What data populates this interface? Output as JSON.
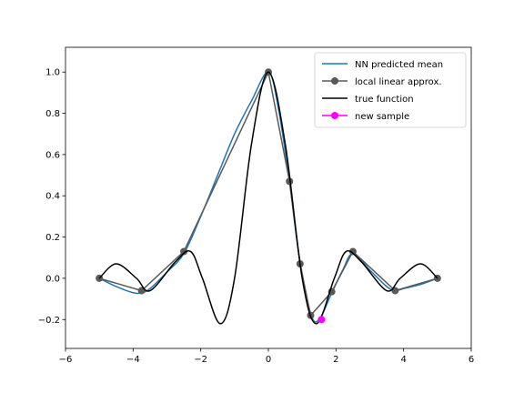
{
  "chart_data": {
    "type": "line",
    "title": "",
    "xlabel": "",
    "ylabel": "",
    "xlim": [
      -6,
      6
    ],
    "ylim": [
      -0.34,
      1.12
    ],
    "xticks": [
      -6,
      -4,
      -2,
      0,
      2,
      4,
      6
    ],
    "yticks": [
      -0.2,
      0.0,
      0.2,
      0.4,
      0.6,
      0.8,
      1.0
    ],
    "xtick_labels": [
      "−6",
      "−4",
      "−2",
      "0",
      "2",
      "4",
      "6"
    ],
    "ytick_labels": [
      "−0.2",
      "0.0",
      "0.2",
      "0.4",
      "0.6",
      "0.8",
      "1.0"
    ],
    "grid": false,
    "legend_position": "top-right",
    "series": [
      {
        "name": "NN predicted mean",
        "color": "#1f77b4",
        "style": "line",
        "x": [
          -5.0,
          -4.5,
          -4.0,
          -3.75,
          -3.5,
          -3.0,
          -2.5,
          -2.0,
          -1.5,
          -1.0,
          -0.5,
          0.0,
          0.3,
          0.625,
          0.9,
          1.25,
          1.5,
          1.875,
          2.2,
          2.5,
          3.0,
          3.5,
          3.75,
          4.0,
          4.5,
          5.0
        ],
        "y": [
          0.0,
          -0.04,
          -0.07,
          -0.07,
          -0.05,
          0.03,
          0.12,
          0.3,
          0.5,
          0.7,
          0.86,
          1.0,
          0.82,
          0.47,
          0.12,
          -0.17,
          -0.2,
          -0.07,
          0.04,
          0.12,
          0.04,
          -0.04,
          -0.06,
          -0.05,
          -0.03,
          0.0
        ]
      },
      {
        "name": "local linear approx.",
        "color": "#595959",
        "style": "line-marker",
        "x": [
          -5.0,
          -3.75,
          -2.5,
          0.0,
          0.625,
          0.9375,
          1.25,
          1.875,
          2.5,
          3.75,
          5.0
        ],
        "y": [
          0.0,
          -0.06,
          0.13,
          1.0,
          0.47,
          0.07,
          -0.18,
          -0.065,
          0.13,
          -0.06,
          0.0
        ]
      },
      {
        "name": "true function",
        "color": "#000000",
        "style": "line",
        "x": [
          -5.0,
          -4.5,
          -3.9,
          -3.5,
          -2.75,
          -2.3,
          -1.95,
          -1.42,
          -1.0,
          -0.5,
          0.0,
          0.5,
          1.0,
          1.42,
          1.95,
          2.3,
          2.75,
          3.5,
          3.9,
          4.5,
          5.0
        ],
        "y": [
          0.0,
          0.07,
          0.0,
          -0.06,
          0.08,
          0.13,
          0.0,
          -0.22,
          0.0,
          0.65,
          1.0,
          0.65,
          0.0,
          -0.22,
          0.0,
          0.13,
          0.08,
          -0.06,
          0.0,
          0.07,
          0.0
        ]
      },
      {
        "name": "new sample",
        "color": "#ff00ff",
        "style": "marker",
        "x": [
          1.57
        ],
        "y": [
          -0.2
        ]
      }
    ]
  }
}
